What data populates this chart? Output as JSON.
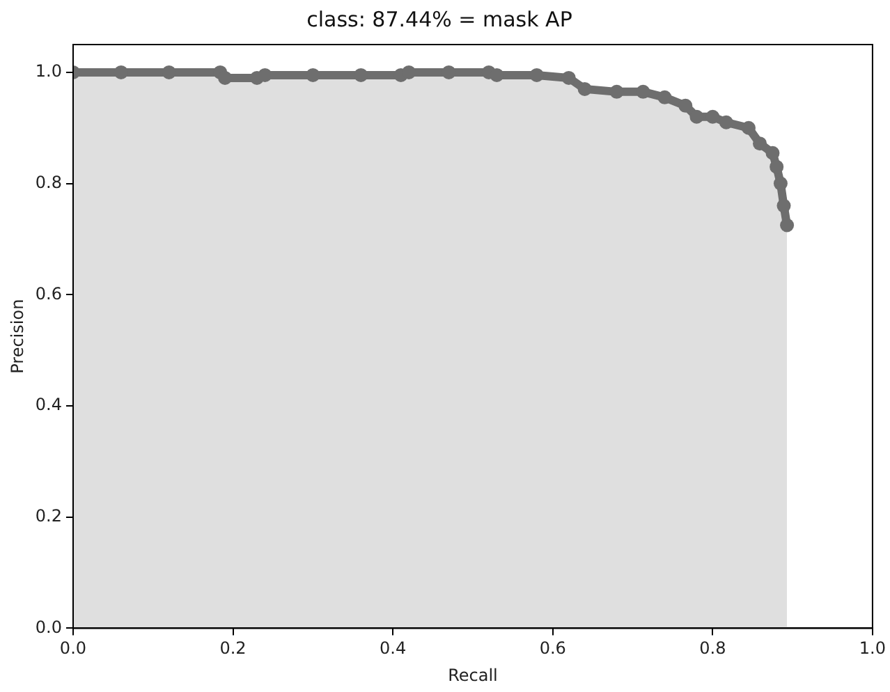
{
  "chart_data": {
    "type": "area",
    "title": "class: 87.44% = mask AP",
    "xlabel": "Recall",
    "ylabel": "Precision",
    "x": [
      0,
      0.06,
      0.12,
      0.184,
      0.19,
      0.23,
      0.24,
      0.3,
      0.36,
      0.41,
      0.42,
      0.47,
      0.52,
      0.53,
      0.58,
      0.62,
      0.64,
      0.68,
      0.713,
      0.74,
      0.766,
      0.78,
      0.8,
      0.817,
      0.845,
      0.859,
      0.875,
      0.88,
      0.885,
      0.889,
      0.893
    ],
    "series": [
      {
        "color": "#6e6e6e",
        "values": [
          1.0,
          1.0,
          1.0,
          1.0,
          0.99,
          0.99,
          0.995,
          0.995,
          0.995,
          0.995,
          1.0,
          1.0,
          1.0,
          0.995,
          0.995,
          0.99,
          0.97,
          0.965,
          0.965,
          0.955,
          0.94,
          0.92,
          0.92,
          0.91,
          0.9,
          0.872,
          0.855,
          0.83,
          0.8,
          0.76,
          0.725
        ]
      }
    ],
    "xlim": [
      0,
      1
    ],
    "ylim": [
      0,
      1.05
    ],
    "xticks": [
      {
        "value": 0,
        "label": "0.0"
      },
      0.2,
      0.4,
      0.6,
      0.8,
      {
        "value": 1,
        "label": "1.0"
      }
    ],
    "yticks": [
      {
        "value": 0,
        "label": "0.0"
      },
      0.2,
      0.4,
      0.6,
      0.8,
      {
        "value": 1,
        "label": "1.0"
      }
    ],
    "marker": "circle",
    "grid": false,
    "legend": false
  }
}
